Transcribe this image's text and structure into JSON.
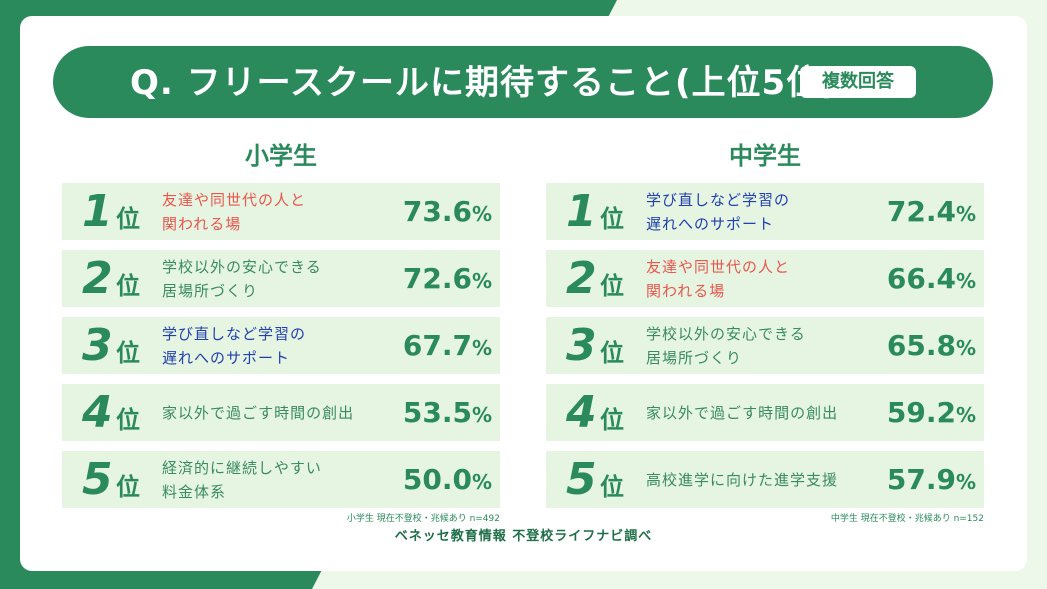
{
  "title": "Q. フリースクールに期待すること(上位5位)",
  "badge": "複数回答",
  "rank_suffix": "位",
  "source": "ベネッセ教育情報 不登校ライフナビ調べ",
  "colors": {
    "accent_green": "#2a8a5c",
    "row_bg": "#e6f5e1",
    "red": "#e8564e",
    "blue": "#1f3fb0",
    "green": "#3a8a62"
  },
  "chart_data": [
    {
      "type": "table",
      "title": "小学生",
      "note": "小学生 現在不登校・兆候あり n=492",
      "rows": [
        {
          "rank": "1",
          "label": "友達や同世代の人と\n関われる場",
          "value": "73.6",
          "unit": "%",
          "color": "red"
        },
        {
          "rank": "2",
          "label": "学校以外の安心できる\n居場所づくり",
          "value": "72.6",
          "unit": "%",
          "color": "green"
        },
        {
          "rank": "3",
          "label": "学び直しなど学習の\n遅れへのサポート",
          "value": "67.7",
          "unit": "%",
          "color": "blue"
        },
        {
          "rank": "4",
          "label": "家以外で過ごす時間の創出",
          "value": "53.5",
          "unit": "%",
          "color": "green"
        },
        {
          "rank": "5",
          "label": "経済的に継続しやすい\n料金体系",
          "value": "50.0",
          "unit": "%",
          "color": "green"
        }
      ]
    },
    {
      "type": "table",
      "title": "中学生",
      "note": "中学生 現在不登校・兆候あり n=152",
      "rows": [
        {
          "rank": "1",
          "label": "学び直しなど学習の\n遅れへのサポート",
          "value": "72.4",
          "unit": "%",
          "color": "blue"
        },
        {
          "rank": "2",
          "label": "友達や同世代の人と\n関われる場",
          "value": "66.4",
          "unit": "%",
          "color": "red"
        },
        {
          "rank": "3",
          "label": "学校以外の安心できる\n居場所づくり",
          "value": "65.8",
          "unit": "%",
          "color": "green"
        },
        {
          "rank": "4",
          "label": "家以外で過ごす時間の創出",
          "value": "59.2",
          "unit": "%",
          "color": "green"
        },
        {
          "rank": "5",
          "label": "高校進学に向けた進学支援",
          "value": "57.9",
          "unit": "%",
          "color": "green"
        }
      ]
    }
  ]
}
